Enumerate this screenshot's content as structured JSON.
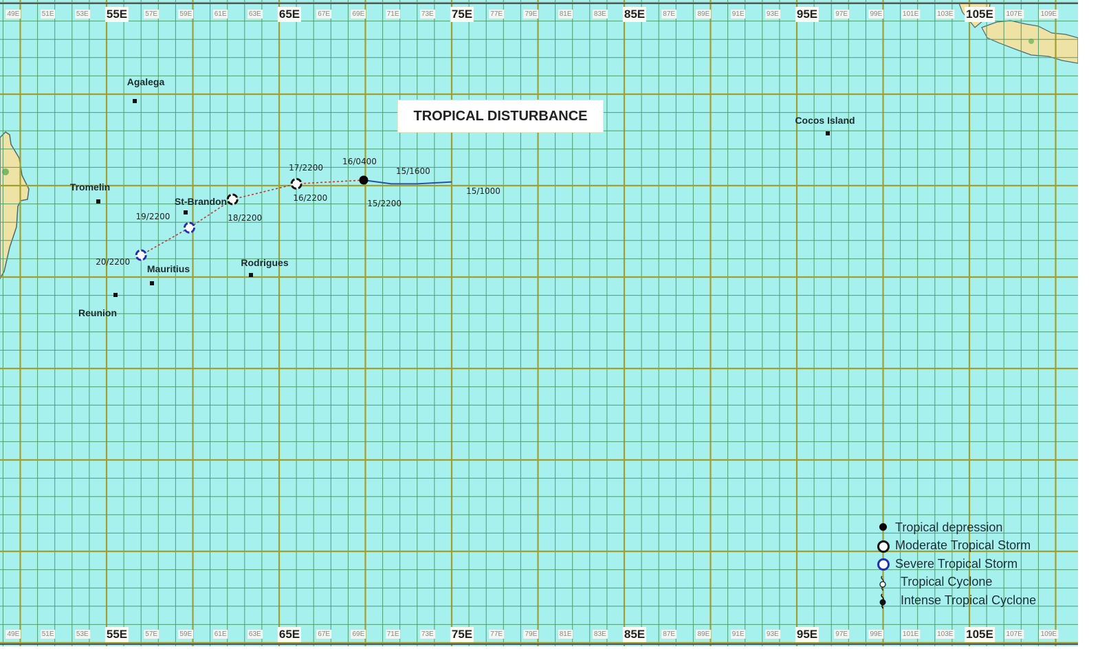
{
  "title": "TROPICAL DISTURBANCE",
  "colors": {
    "ocean": "#a6f1ee",
    "land": "#eee3a4",
    "grid_minor": "#4f9e6c",
    "grid_major": "#a0a030",
    "track_depression": "#2a4fa8",
    "track_storm": "#c0392b",
    "severe": "#2230b0"
  },
  "axis": {
    "labels": [
      {
        "lon": 49,
        "text": "49E"
      },
      {
        "lon": 51,
        "text": "51E"
      },
      {
        "lon": 53,
        "text": "53E"
      },
      {
        "lon": 55,
        "text": "55E",
        "major": true
      },
      {
        "lon": 57,
        "text": "57E"
      },
      {
        "lon": 59,
        "text": "59E"
      },
      {
        "lon": 61,
        "text": "61E"
      },
      {
        "lon": 63,
        "text": "63E"
      },
      {
        "lon": 65,
        "text": "65E",
        "major": true
      },
      {
        "lon": 67,
        "text": "67E"
      },
      {
        "lon": 69,
        "text": "69E"
      },
      {
        "lon": 71,
        "text": "71E"
      },
      {
        "lon": 73,
        "text": "73E"
      },
      {
        "lon": 75,
        "text": "75E",
        "major": true
      },
      {
        "lon": 77,
        "text": "77E"
      },
      {
        "lon": 79,
        "text": "79E"
      },
      {
        "lon": 81,
        "text": "81E"
      },
      {
        "lon": 83,
        "text": "83E"
      },
      {
        "lon": 85,
        "text": "85E",
        "major": true
      },
      {
        "lon": 87,
        "text": "87E"
      },
      {
        "lon": 89,
        "text": "89E"
      },
      {
        "lon": 91,
        "text": "91E"
      },
      {
        "lon": 93,
        "text": "93E"
      },
      {
        "lon": 95,
        "text": "95E",
        "major": true
      },
      {
        "lon": 97,
        "text": "97E"
      },
      {
        "lon": 99,
        "text": "99E"
      },
      {
        "lon": 101,
        "text": "101E"
      },
      {
        "lon": 103,
        "text": "103E"
      },
      {
        "lon": 105,
        "text": "105E",
        "major": true
      },
      {
        "lon": 107,
        "text": "107E"
      },
      {
        "lon": 109,
        "text": "109E"
      }
    ]
  },
  "places": {
    "agalega": "Agalega",
    "tromelin": "Tromelin",
    "st_brandon": "St-Brandon",
    "mauritius": "Mauritius",
    "rodrigues": "Rodrigues",
    "reunion": "Reunion",
    "cocos": "Cocos Island"
  },
  "track": {
    "points": [
      {
        "time": "15/1000",
        "lon": 75.0,
        "lat": 14.8,
        "category": "none"
      },
      {
        "time": "15/1600",
        "lon": 73.0,
        "lat": 14.9,
        "category": "none"
      },
      {
        "time": "15/2200",
        "lon": 71.5,
        "lat": 14.9,
        "category": "none"
      },
      {
        "time": "16/0400",
        "lon": 69.9,
        "lat": 14.7,
        "category": "tropical-depression"
      },
      {
        "time": "16/2200",
        "lon": 68.0,
        "lat": 14.8,
        "category": "none"
      },
      {
        "time": "17/2200",
        "lon": 66.0,
        "lat": 14.9,
        "category": "moderate-tropical-storm"
      },
      {
        "time": "18/2200",
        "lon": 62.3,
        "lat": 15.75,
        "category": "moderate-tropical-storm"
      },
      {
        "time": "19/2200",
        "lon": 59.8,
        "lat": 17.3,
        "category": "severe-tropical-storm"
      },
      {
        "time": "20/2200",
        "lon": 57.0,
        "lat": 18.8,
        "category": "severe-tropical-storm"
      }
    ]
  },
  "legend": [
    {
      "symbol": "filled-dot",
      "label": "Tropical depression"
    },
    {
      "symbol": "black-ring",
      "label": "Moderate Tropical Storm"
    },
    {
      "symbol": "blue-ring",
      "label": "Severe Tropical Storm"
    },
    {
      "symbol": "cyclone-open",
      "label": "Tropical Cyclone"
    },
    {
      "symbol": "cyclone-filled",
      "label": "Intense Tropical Cyclone"
    }
  ]
}
